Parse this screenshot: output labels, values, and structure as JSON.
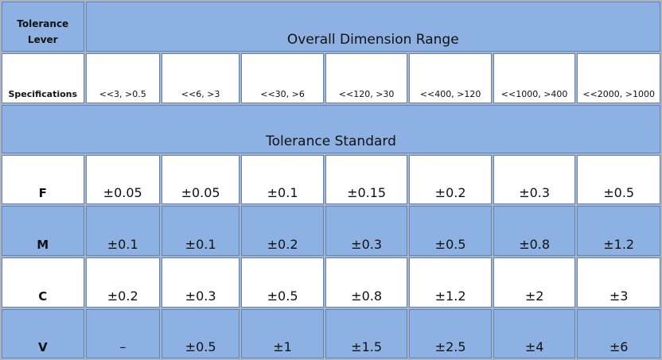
{
  "header": {
    "corner_label": "Tolerance Lever",
    "range_title": "Overall Dimension Range"
  },
  "spec_row": {
    "label": "Specifications",
    "ranges": [
      "<<3, >0.5",
      "<<6, >3",
      "<<30, >6",
      "<<120, >30",
      "<<400, >120",
      "<<1000, >400",
      "<<2000, >1000"
    ]
  },
  "standard_title": "Tolerance Standard",
  "rows": [
    {
      "grade": "F",
      "values": [
        "±0.05",
        "±0.05",
        "±0.1",
        "±0.15",
        "±0.2",
        "±0.3",
        "±0.5"
      ]
    },
    {
      "grade": "M",
      "values": [
        "±0.1",
        "±0.1",
        "±0.2",
        "±0.3",
        "±0.5",
        "±0.8",
        "±1.2"
      ]
    },
    {
      "grade": "C",
      "values": [
        "±0.2",
        "±0.3",
        "±0.5",
        "±0.8",
        "±1.2",
        "±2",
        "±3"
      ]
    },
    {
      "grade": "V",
      "values": [
        "–",
        "±0.5",
        "±1",
        "±1.5",
        "±2.5",
        "±4",
        "±6"
      ]
    }
  ],
  "colors": {
    "blue_cell": "#8db1e3",
    "white_cell": "#ffffff",
    "border": "#5b86c4"
  }
}
